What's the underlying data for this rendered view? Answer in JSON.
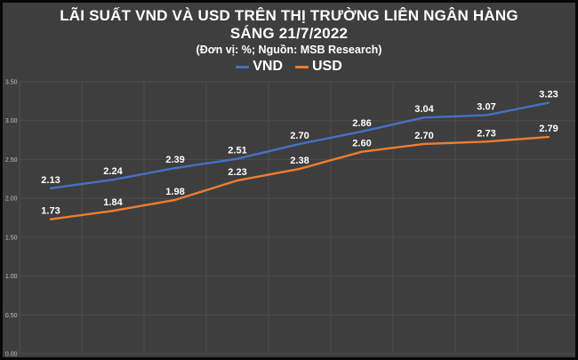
{
  "title": {
    "line1": "LÃI SUẤT VND VÀ USD TRÊN THỊ TRƯỜNG LIÊN NGÂN HÀNG",
    "line2": "SÁNG 21/7/2022"
  },
  "subtitle": "(Đơn vị: %; Nguồn: MSB Research)",
  "legend": [
    {
      "label": "VND",
      "color": "#4472C4"
    },
    {
      "label": "USD",
      "color": "#ED7D31"
    }
  ],
  "colors": {
    "background": "#3E3E3E",
    "frame": "#070707",
    "gridline": "#4D4D4D",
    "axis_text": "#C0C0C0",
    "data_label_text": "#FFFFFF",
    "vnd_line": "#4472C4",
    "usd_line": "#ED7D31"
  },
  "chart_data": {
    "type": "line",
    "title": "LÃI SUẤT VND VÀ USD TRÊN THỊ TRƯỜNG LIÊN NGÂN HÀNG SÁNG 21/7/2022",
    "subtitle": "(Đơn vị: %; Nguồn: MSB Research)",
    "unit": "%",
    "source": "MSB Research",
    "series": [
      {
        "name": "VND",
        "color": "#4472C4",
        "values": [
          2.13,
          2.24,
          2.39,
          2.51,
          2.7,
          2.86,
          3.04,
          3.07,
          3.23
        ]
      },
      {
        "name": "USD",
        "color": "#ED7D31",
        "values": [
          1.73,
          1.84,
          1.98,
          2.23,
          2.38,
          2.6,
          2.7,
          2.73,
          2.79
        ]
      }
    ],
    "num_points": 9,
    "ylim": [
      0,
      3.5
    ],
    "ytick_step": 0.5,
    "ytick_labels": [
      "3.50",
      "3.00",
      "2.50",
      "2.00",
      "1.50",
      "1.00",
      "0.50",
      "0.00"
    ],
    "xtick_labels_visible": false,
    "grid": true,
    "data_labels": true,
    "data_label_format": "0.00",
    "legend_position": "top"
  }
}
